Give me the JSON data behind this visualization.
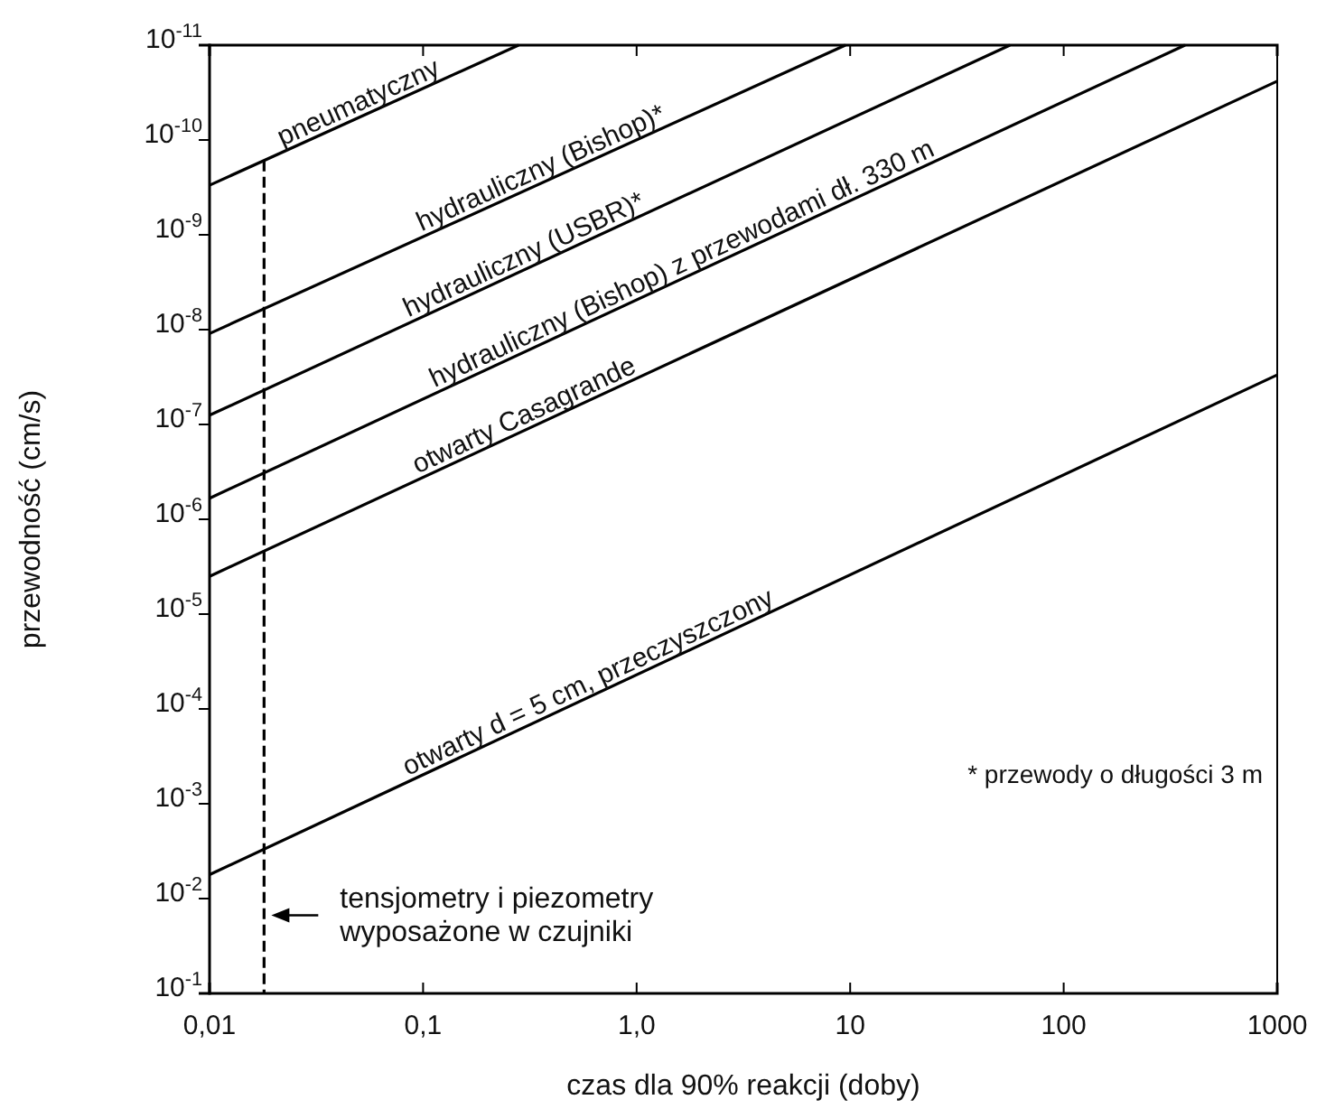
{
  "chart_data": {
    "type": "line",
    "xlabel": "czas dla 90% reakcji (doby)",
    "ylabel": "przewodność (cm/s)",
    "log": "xy",
    "xlim": [
      0.01,
      1000
    ],
    "ylim": [
      0.1,
      1e-11
    ],
    "xticks": [
      {
        "value": 0.01,
        "label": "0,01"
      },
      {
        "value": 0.1,
        "label": "0,1"
      },
      {
        "value": 1,
        "label": "1,0"
      },
      10,
      100,
      1000
    ],
    "yticks": [
      {
        "value": 1e-11,
        "label": "10$^{-11}$"
      },
      {
        "value": 1e-10,
        "label": "10$^{-10}$"
      },
      {
        "value": 1e-09,
        "label": "10$^{-9}$"
      },
      {
        "value": 1e-08,
        "label": "10$^{-8}$"
      },
      {
        "value": 1e-07,
        "label": "10$^{-7}$"
      },
      {
        "value": 1e-06,
        "label": "10$^{-6}$"
      },
      {
        "value": 1e-05,
        "label": "10$^{-5}$"
      },
      {
        "value": 0.0001,
        "label": "10$^{-4}$"
      },
      {
        "value": 0.001,
        "label": "10$^{-3}$"
      },
      {
        "value": 0.01,
        "label": "10$^{-2}$"
      },
      {
        "value": 0.1,
        "label": "10$^{-1}$"
      }
    ],
    "grid": false,
    "marker": "none",
    "line_style": "solid",
    "series": [
      {
        "name": "pneumatyczny",
        "color": "#000000",
        "x": [
          0.01,
          0.28
        ],
        "values": [
          3e-10,
          1e-11
        ]
      },
      {
        "name": "hydrauliczny (Bishop)*",
        "color": "#000000",
        "x": [
          0.01,
          9.5
        ],
        "values": [
          1.1e-08,
          1e-11
        ]
      },
      {
        "name": "hydrauliczny (USBR)*",
        "color": "#000000",
        "x": [
          0.01,
          56
        ],
        "values": [
          8e-08,
          1e-11
        ]
      },
      {
        "name": "hydrauliczny (Bishop) z przewodami dł. 330 m",
        "color": "#000000",
        "x": [
          0.01,
          370
        ],
        "values": [
          6e-07,
          1e-11
        ]
      },
      {
        "name": "otwarty Casagrande",
        "color": "#000000",
        "x": [
          0.01,
          1000
        ],
        "values": [
          4e-06,
          2.4e-11
        ]
      },
      {
        "name": "otwarty d = 5 cm, przeczyszczony",
        "color": "#000000",
        "x": [
          0.01,
          1000
        ],
        "values": [
          0.0056,
          3e-08
        ]
      }
    ],
    "ref_lines": [
      {
        "axis": "x",
        "value": 0.018,
        "label": "tensjometry i piezometry\nwyposażone w czujniki",
        "line_style": "dashed",
        "color": "#000000"
      }
    ],
    "annotations": [
      "* przewody o długości 3 m"
    ]
  }
}
